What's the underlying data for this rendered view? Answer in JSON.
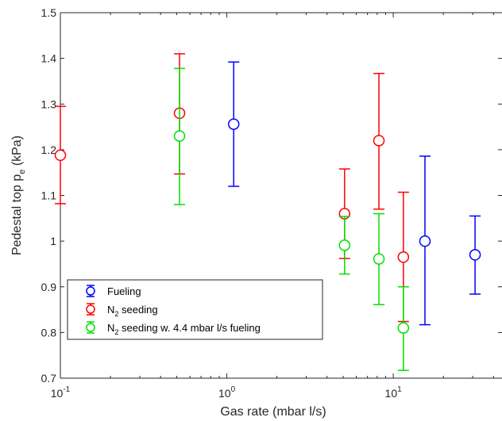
{
  "chart_data": {
    "type": "scatter",
    "title": "",
    "xlabel": "Gas rate (mbar l/s)",
    "ylabel": {
      "main": "Pedestal top p",
      "sub": "e",
      "unit": " (kPa)"
    },
    "xscale": "log",
    "xlim": [
      0.1,
      45
    ],
    "ylim": [
      0.7,
      1.5
    ],
    "xticks": [
      {
        "value": 0.1,
        "base": "10",
        "exp": "-1"
      },
      {
        "value": 1,
        "base": "10",
        "exp": "0"
      },
      {
        "value": 10,
        "base": "10",
        "exp": "1"
      }
    ],
    "yticks": [
      "0.7",
      "0.8",
      "0.9",
      "1",
      "1.1",
      "1.2",
      "1.3",
      "1.4",
      "1.5"
    ],
    "grid": false,
    "legend_position": "bottom-left",
    "series": [
      {
        "legend": {
          "main": "Fueling",
          "sub": "",
          "rest": ""
        },
        "color": "#0000ff",
        "points": [
          {
            "x": 1.1,
            "y": 1.256,
            "low": 1.12,
            "high": 1.392
          },
          {
            "x": 15.5,
            "y": 1.0,
            "low": 0.817,
            "high": 1.186
          },
          {
            "x": 31,
            "y": 0.97,
            "low": 0.884,
            "high": 1.055
          }
        ]
      },
      {
        "legend": {
          "main": "N",
          "sub": "2",
          "rest": " seeding"
        },
        "color": "#ff0000",
        "points": [
          {
            "x": 0.1,
            "y": 1.188,
            "low": 1.082,
            "high": 1.295
          },
          {
            "x": 0.52,
            "y": 1.28,
            "low": 1.147,
            "high": 1.41
          },
          {
            "x": 5.1,
            "y": 1.06,
            "low": 0.962,
            "high": 1.158
          },
          {
            "x": 8.2,
            "y": 1.22,
            "low": 1.07,
            "high": 1.367
          },
          {
            "x": 11.5,
            "y": 0.965,
            "low": 0.824,
            "high": 1.107
          }
        ]
      },
      {
        "legend": {
          "main": "N",
          "sub": "2",
          "rest": " seeding w. 4.4 mbar l/s fueling"
        },
        "color": "#00e000",
        "points": [
          {
            "x": 0.52,
            "y": 1.23,
            "low": 1.08,
            "high": 1.378
          },
          {
            "x": 5.1,
            "y": 0.991,
            "low": 0.928,
            "high": 1.054
          },
          {
            "x": 8.2,
            "y": 0.961,
            "low": 0.861,
            "high": 1.06
          },
          {
            "x": 11.5,
            "y": 0.81,
            "low": 0.717,
            "high": 0.9
          }
        ]
      }
    ]
  }
}
